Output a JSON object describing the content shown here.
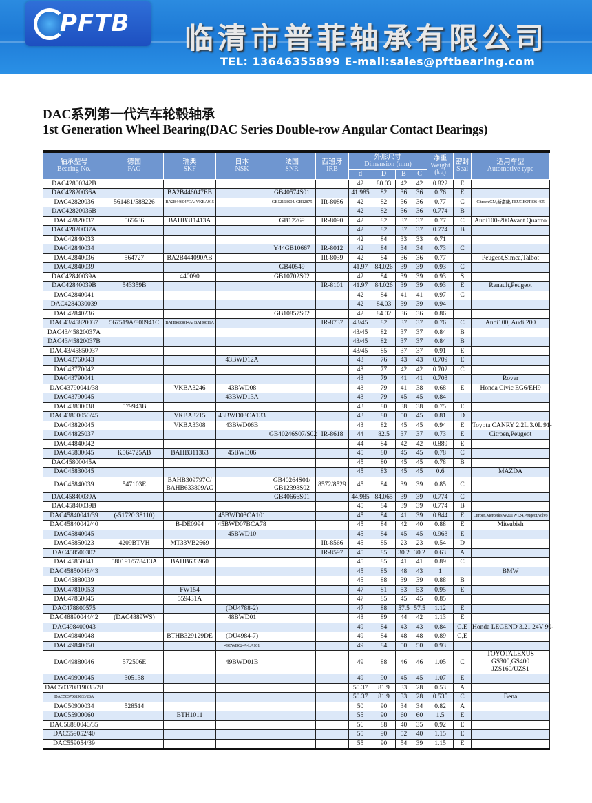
{
  "banner": {
    "logo_text": "PFTB",
    "company_name": "临清市普菲轴承有限公司",
    "contact": "TEL: 13646355899 E-mail:sales@pftbearing.com"
  },
  "title_cn": "DAC系列第一代汽车轮毂轴承",
  "title_en": "1st Generation Wheel Bearing(DAC Series Double-row Angular Contact Bearings)",
  "table": {
    "headers": {
      "bearing": [
        "轴承型号",
        "Bearing No."
      ],
      "fag": [
        "德国",
        "FAG"
      ],
      "skf": [
        "瑞典",
        "SKF"
      ],
      "nsk": [
        "日本",
        "NSK"
      ],
      "snr": [
        "法国",
        "SNR"
      ],
      "irb": [
        "西班牙",
        "IRB"
      ],
      "dimension": [
        "外形尺寸",
        "Dimension (mm)"
      ],
      "weight": [
        "净重",
        "Weight",
        "(kg)"
      ],
      "seal": [
        "密封",
        "Seal"
      ],
      "auto": [
        "适用车型",
        "Automotive type"
      ],
      "dims": [
        "d",
        "D",
        "B",
        "C"
      ]
    },
    "rows": [
      [
        "DAC42800342B",
        "",
        "",
        "",
        "",
        "",
        "42",
        "80.03",
        "42",
        "42",
        "0.822",
        "E",
        ""
      ],
      [
        "DAC42820036A",
        "",
        "BA2B446047EB",
        "",
        "GB40574S01",
        "",
        "41.985",
        "82",
        "36",
        "36",
        "0.76",
        "E",
        ""
      ],
      [
        "DAC42820036",
        "561481/588226",
        "BA2B446047CA/ VKBA915",
        "",
        "GB12163S04/ GB12875",
        "IR-8086",
        "42",
        "82",
        "36",
        "36",
        "0.77",
        "C",
        "Citroen,GM,新富康, PEUGEOT306-405"
      ],
      [
        "DAC42820036B",
        "",
        "",
        "",
        "",
        "",
        "42",
        "82",
        "36",
        "36",
        "0.774",
        "B",
        ""
      ],
      [
        "DAC42820037",
        "565636",
        "BAHB311413A",
        "",
        "GB12269",
        "IR-8090",
        "42",
        "82",
        "37",
        "37",
        "0.77",
        "C",
        "Audi100-200Avant Quattro"
      ],
      [
        "DAC42820037A",
        "",
        "",
        "",
        "",
        "",
        "42",
        "82",
        "37",
        "37",
        "0.774",
        "B",
        ""
      ],
      [
        "DAC42840033",
        "",
        "",
        "",
        "",
        "",
        "42",
        "84",
        "33",
        "33",
        "0.71",
        "",
        ""
      ],
      [
        "DAC42840034",
        "",
        "",
        "",
        "Y44GB10667",
        "IR-8012",
        "42",
        "84",
        "34",
        "34",
        "0.73",
        "C",
        ""
      ],
      [
        "DAC42840036",
        "564727",
        "BA2B444090AB",
        "",
        "",
        "IR-8039",
        "42",
        "84",
        "36",
        "36",
        "0.77",
        "",
        "Peugeot,Simca,Talbot"
      ],
      [
        "DAC42840039",
        "",
        "",
        "",
        "GB40549",
        "",
        "41.97",
        "84.026",
        "39",
        "39",
        "0.93",
        "C",
        ""
      ],
      [
        "DAC42840039A",
        "",
        "440090",
        "",
        "GB10702S02",
        "",
        "42",
        "84",
        "39",
        "39",
        "0.93",
        "S",
        ""
      ],
      [
        "DAC42840039B",
        "543359B",
        "",
        "",
        "",
        "IR-8101",
        "41.97",
        "84.026",
        "39",
        "39",
        "0.93",
        "E",
        "Renault,Peugeot"
      ],
      [
        "DAC42840041",
        "",
        "",
        "",
        "",
        "",
        "42",
        "84",
        "41",
        "41",
        "0.97",
        "C",
        ""
      ],
      [
        "DAC4284030039",
        "",
        "",
        "",
        "",
        "",
        "42",
        "84.03",
        "39",
        "39",
        "0.94",
        "",
        ""
      ],
      [
        "DAC42840236",
        "",
        "",
        "",
        "GB10857S02",
        "",
        "42",
        "84.02",
        "36",
        "36",
        "0.86",
        "",
        ""
      ],
      [
        "DAC43/45820037",
        "567519A/800941C",
        "BAHB633814A/ BAH0011A",
        "",
        "",
        "IR-8737",
        "43/45",
        "82",
        "37",
        "37",
        "0.76",
        "C",
        "Audi100, Audi 200"
      ],
      [
        "DAC43/45820037A",
        "",
        "",
        "",
        "",
        "",
        "43/45",
        "82",
        "37",
        "37",
        "0.84",
        "B",
        ""
      ],
      [
        "DAC43/45820037B",
        "",
        "",
        "",
        "",
        "",
        "43/45",
        "82",
        "37",
        "37",
        "0.84",
        "B",
        ""
      ],
      [
        "DAC43/45850037",
        "",
        "",
        "",
        "",
        "",
        "43/45",
        "85",
        "37",
        "37",
        "0.91",
        "E",
        ""
      ],
      [
        "DAC43760043",
        "",
        "",
        "43BWD12A",
        "",
        "",
        "43",
        "76",
        "43",
        "43",
        "0.709",
        "E",
        ""
      ],
      [
        "DAC43770042",
        "",
        "",
        "",
        "",
        "",
        "43",
        "77",
        "42",
        "42",
        "0.702",
        "C",
        ""
      ],
      [
        "DAC43790041",
        "",
        "",
        "",
        "",
        "",
        "43",
        "79",
        "41",
        "41",
        "0.703",
        "",
        "Rover"
      ],
      [
        "DAC43790041/38",
        "",
        "VKBA3246",
        "43BWD08",
        "",
        "",
        "43",
        "79",
        "41",
        "38",
        "0.68",
        "E",
        "Honda Civic EG6/EH9"
      ],
      [
        "DAC43790045",
        "",
        "",
        "43BWD13A",
        "",
        "",
        "43",
        "79",
        "45",
        "45",
        "0.84",
        "",
        ""
      ],
      [
        "DAC43800038",
        "579943B",
        "",
        "",
        "",
        "",
        "43",
        "80",
        "38",
        "38",
        "0.75",
        "E",
        ""
      ],
      [
        "DAC43800050/45",
        "",
        "VKBA3215",
        "43BWD03CA133",
        "",
        "",
        "43",
        "80",
        "50",
        "45",
        "0.81",
        "D",
        ""
      ],
      [
        "DAC43820045",
        "",
        "VKBA3308",
        "43BWD06B",
        "",
        "",
        "43",
        "82",
        "45",
        "45",
        "0.94",
        "E",
        "Toyota CANRY 2.2L,3.0L 91-"
      ],
      [
        "DAC44825037",
        "",
        "",
        "",
        "GB40246S07/S02",
        "IR-8618",
        "44",
        "82.5",
        "37",
        "37",
        "0.73",
        "E",
        "Citroen,Peugeot"
      ],
      [
        "DAC44840042",
        "",
        "",
        "",
        "",
        "",
        "44",
        "84",
        "42",
        "42",
        "0.889",
        "E",
        ""
      ],
      [
        "DAC45800045",
        "K564725AB",
        "BAHB311363",
        "45BWD06",
        "",
        "",
        "45",
        "80",
        "45",
        "45",
        "0.78",
        "C",
        ""
      ],
      [
        "DAC45800045A",
        "",
        "",
        "",
        "",
        "",
        "45",
        "80",
        "45",
        "45",
        "0.78",
        "B",
        ""
      ],
      [
        "DAC45830045",
        "",
        "",
        "",
        "",
        "",
        "45",
        "83",
        "45",
        "45",
        "0.6",
        "",
        "MAZDA"
      ],
      [
        "DAC45840039",
        "547103E",
        "BAHB309797C/ BAHB633809AC",
        "",
        "GB40264S01/ GB12398S02",
        "8572/8529",
        "45",
        "84",
        "39",
        "39",
        "0.85",
        "C",
        ""
      ],
      [
        "DAC45840039A",
        "",
        "",
        "",
        "GB40666S01",
        "",
        "44.985",
        "84.065",
        "39",
        "39",
        "0.774",
        "C",
        ""
      ],
      [
        "DAC45840039B",
        "",
        "",
        "",
        "",
        "",
        "45",
        "84",
        "39",
        "39",
        "0.774",
        "B",
        ""
      ],
      [
        "DAC45840041/39",
        "(-51720 38110)",
        "",
        "45BWD03CA101",
        "",
        "",
        "45",
        "84",
        "41",
        "39",
        "0.844",
        "E",
        "Citroen,Mercedes W201W124,Peugeot,Volvo"
      ],
      [
        "DAC45840042/40",
        "",
        "B-DE0994",
        "45BWD07BCA78",
        "",
        "",
        "45",
        "84",
        "42",
        "40",
        "0.88",
        "E",
        "Mitsubish"
      ],
      [
        "DAC45840045",
        "",
        "",
        "45BWD10",
        "",
        "",
        "45",
        "84",
        "45",
        "45",
        "0.963",
        "E",
        ""
      ],
      [
        "DAC45850023",
        "4209BTVH",
        "MT33VB2669",
        "",
        "",
        "IR-8566",
        "45",
        "85",
        "23",
        "23",
        "0.54",
        "D",
        ""
      ],
      [
        "DAC458500302",
        "",
        "",
        "",
        "",
        "IR-8597",
        "45",
        "85",
        "30.2",
        "30.2",
        "0.63",
        "A",
        ""
      ],
      [
        "DAC45850041",
        "580191/578413A",
        "BAHB633960",
        "",
        "",
        "",
        "45",
        "85",
        "41",
        "41",
        "0.89",
        "C",
        ""
      ],
      [
        "DAC45850048/43",
        "",
        "",
        "",
        "",
        "",
        "45",
        "85",
        "48",
        "43",
        "1",
        "",
        "BMW"
      ],
      [
        "DAC45880039",
        "",
        "",
        "",
        "",
        "",
        "45",
        "88",
        "39",
        "39",
        "0.88",
        "B",
        ""
      ],
      [
        "DAC47810053",
        "",
        "FW154",
        "",
        "",
        "",
        "47",
        "81",
        "53",
        "53",
        "0.95",
        "E",
        ""
      ],
      [
        "DAC47850045",
        "",
        "559431A",
        "",
        "",
        "",
        "47",
        "85",
        "45",
        "45",
        "0.85",
        "",
        ""
      ],
      [
        "DAC478800575",
        "",
        "",
        "(DU4788-2)",
        "",
        "",
        "47",
        "88",
        "57.5",
        "57.5",
        "1.12",
        "E",
        ""
      ],
      [
        "DAC48890044/42",
        "(DAC4889WS)",
        "",
        "48BWD01",
        "",
        "",
        "48",
        "89",
        "44",
        "42",
        "1.13",
        "E",
        ""
      ],
      [
        "DAC498400043",
        "",
        "",
        "",
        "",
        "",
        "49",
        "84",
        "43",
        "43",
        "0.84",
        "C.E",
        "Honda LEGEND 3.21 24V 90-"
      ],
      [
        "DAC49840048",
        "",
        "BTHB329129DE",
        "(DU4984-7)",
        "",
        "",
        "49",
        "84",
        "48",
        "48",
        "0.89",
        "C,E",
        ""
      ],
      [
        "DAC49840050",
        "",
        "",
        "49BWD02-A-LA101",
        "",
        "",
        "49",
        "84",
        "50",
        "50",
        "0.93",
        "",
        ""
      ],
      [
        "DAC49880046",
        "572506E",
        "",
        "49BWD01B",
        "",
        "",
        "49",
        "88",
        "46",
        "46",
        "1.05",
        "C",
        "TOYOTALEXUS GS300,GS400 JZS160/UZS1"
      ],
      [
        "DAC49900045",
        "305138",
        "",
        "",
        "",
        "",
        "49",
        "90",
        "45",
        "45",
        "1.07",
        "E",
        ""
      ],
      [
        "DAC50370819033/28",
        "",
        "",
        "",
        "",
        "",
        "50.37",
        "81.9",
        "33",
        "28",
        "0.53",
        "A",
        ""
      ],
      [
        "DAC50370819033/28A",
        "",
        "",
        "",
        "",
        "",
        "50.37",
        "81.9",
        "33",
        "28",
        "0.535",
        "C",
        "Bena"
      ],
      [
        "DAC50900034",
        "528514",
        "",
        "",
        "",
        "",
        "50",
        "90",
        "34",
        "34",
        "0.82",
        "A",
        ""
      ],
      [
        "DAC55900060",
        "",
        "BTH1011",
        "",
        "",
        "",
        "55",
        "90",
        "60",
        "60",
        "1.5",
        "E",
        ""
      ],
      [
        "DAC56880040/35",
        "",
        "",
        "",
        "",
        "",
        "56",
        "88",
        "40",
        "35",
        "0.92",
        "E",
        ""
      ],
      [
        "DAC559052/40",
        "",
        "",
        "",
        "",
        "",
        "55",
        "90",
        "52",
        "40",
        "1.15",
        "E",
        ""
      ],
      [
        "DAC559054/39",
        "",
        "",
        "",
        "",
        "",
        "55",
        "90",
        "54",
        "39",
        "1.15",
        "E",
        ""
      ]
    ]
  },
  "colors": {
    "banner": "#1e7ad6",
    "header": "#6f96d0",
    "stripe": "#dce8f8"
  }
}
